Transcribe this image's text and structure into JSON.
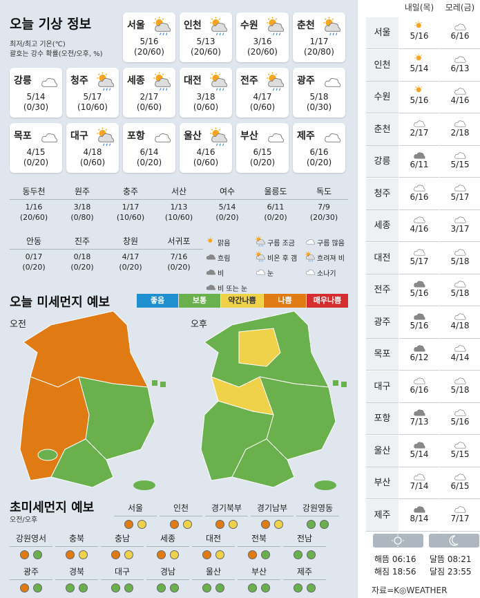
{
  "title": "오늘 기상 정보",
  "subtitle1": "최저/최고 기온(℃)",
  "subtitle2": "괄호는 강수 확률(오전/오후, %)",
  "cities": [
    {
      "name": "서울",
      "temp": "5/16",
      "rain": "(20/60)",
      "icon": "sun-cloud-rain-icon"
    },
    {
      "name": "인천",
      "temp": "5/13",
      "rain": "(20/60)",
      "icon": "sun-cloud-rain-icon"
    },
    {
      "name": "수원",
      "temp": "3/16",
      "rain": "(20/60)",
      "icon": "sun-cloud-rain-icon"
    },
    {
      "name": "춘천",
      "temp": "1/17",
      "rain": "(20/80)",
      "icon": "sun-cloud-rain-icon"
    },
    {
      "name": "강릉",
      "temp": "5/14",
      "rain": "(0/30)",
      "icon": "cloud-icon"
    },
    {
      "name": "청주",
      "temp": "5/17",
      "rain": "(10/60)",
      "icon": "sun-cloud-rain-icon"
    },
    {
      "name": "세종",
      "temp": "2/17",
      "rain": "(0/60)",
      "icon": "sun-cloud-rain-icon"
    },
    {
      "name": "대전",
      "temp": "3/18",
      "rain": "(0/60)",
      "icon": "sun-cloud-rain-icon"
    },
    {
      "name": "전주",
      "temp": "4/17",
      "rain": "(0/60)",
      "icon": "sun-cloud-rain-icon"
    },
    {
      "name": "광주",
      "temp": "5/18",
      "rain": "(0/30)",
      "icon": "cloud-icon"
    },
    {
      "name": "목포",
      "temp": "4/15",
      "rain": "(0/20)",
      "icon": "cloud-icon"
    },
    {
      "name": "대구",
      "temp": "4/18",
      "rain": "(0/60)",
      "icon": "sun-cloud-rain-icon"
    },
    {
      "name": "포항",
      "temp": "6/14",
      "rain": "(0/20)",
      "icon": "cloud-icon"
    },
    {
      "name": "울산",
      "temp": "4/16",
      "rain": "(0/60)",
      "icon": "sun-cloud-rain-icon"
    },
    {
      "name": "부산",
      "temp": "6/15",
      "rain": "(0/20)",
      "icon": "cloud-icon"
    },
    {
      "name": "제주",
      "temp": "6/16",
      "rain": "(0/20)",
      "icon": "cloud-icon"
    }
  ],
  "small_cities": [
    {
      "name": "동두천",
      "temp": "1/16",
      "rain": "(20/60)"
    },
    {
      "name": "원주",
      "temp": "3/18",
      "rain": "(0/80)"
    },
    {
      "name": "충주",
      "temp": "1/17",
      "rain": "(10/60)"
    },
    {
      "name": "서산",
      "temp": "1/13",
      "rain": "(10/60)"
    },
    {
      "name": "여수",
      "temp": "5/14",
      "rain": "(0/20)"
    },
    {
      "name": "울릉도",
      "temp": "6/11",
      "rain": "(0/20)"
    },
    {
      "name": "독도",
      "temp": "7/9",
      "rain": "(20/30)"
    },
    {
      "name": "안동",
      "temp": "0/17",
      "rain": "(0/20)"
    },
    {
      "name": "진주",
      "temp": "0/18",
      "rain": "(0/20)"
    },
    {
      "name": "창원",
      "temp": "4/17",
      "rain": "(0/20)"
    },
    {
      "name": "서귀포",
      "temp": "7/16",
      "rain": "(0/20)"
    }
  ],
  "legend": [
    "맑음",
    "구름 조금",
    "구름 많음",
    "흐림",
    "비온 후 갬",
    "흐려져 비",
    "비",
    "눈",
    "소나기",
    "비 또는 눈"
  ],
  "dust_title": "오늘 미세먼지 예보",
  "levels": [
    {
      "label": "좋음",
      "color": "#1f8fd0"
    },
    {
      "label": "보통",
      "color": "#6ab04c"
    },
    {
      "label": "약간나쁨",
      "color": "#f0d24a"
    },
    {
      "label": "나쁨",
      "color": "#e07b14"
    },
    {
      "label": "매우나쁨",
      "color": "#d62e2e"
    }
  ],
  "am_label": "오전",
  "pm_label": "오후",
  "fine_title": "초미세먼지 예보",
  "fine_sub": "오전/오후",
  "fine": [
    {
      "name": "서울",
      "am": "#e07b14",
      "pm": "#f0d24a"
    },
    {
      "name": "인천",
      "am": "#e07b14",
      "pm": "#f0d24a"
    },
    {
      "name": "경기북부",
      "am": "#e07b14",
      "pm": "#f0d24a"
    },
    {
      "name": "경기남부",
      "am": "#e07b14",
      "pm": "#f0d24a"
    },
    {
      "name": "강원영동",
      "am": "#6ab04c",
      "pm": "#6ab04c"
    },
    {
      "name": "강원영서",
      "am": "#e07b14",
      "pm": "#6ab04c"
    },
    {
      "name": "충북",
      "am": "#e07b14",
      "pm": "#f0d24a"
    },
    {
      "name": "충남",
      "am": "#e07b14",
      "pm": "#f0d24a"
    },
    {
      "name": "세종",
      "am": "#e07b14",
      "pm": "#f0d24a"
    },
    {
      "name": "대전",
      "am": "#e07b14",
      "pm": "#f0d24a"
    },
    {
      "name": "전북",
      "am": "#e07b14",
      "pm": "#6ab04c"
    },
    {
      "name": "전남",
      "am": "#6ab04c",
      "pm": "#6ab04c"
    },
    {
      "name": "광주",
      "am": "#e07b14",
      "pm": "#6ab04c"
    },
    {
      "name": "경북",
      "am": "#6ab04c",
      "pm": "#6ab04c"
    },
    {
      "name": "대구",
      "am": "#6ab04c",
      "pm": "#6ab04c"
    },
    {
      "name": "경남",
      "am": "#6ab04c",
      "pm": "#6ab04c"
    },
    {
      "name": "울산",
      "am": "#6ab04c",
      "pm": "#6ab04c"
    },
    {
      "name": "부산",
      "am": "#6ab04c",
      "pm": "#6ab04c"
    },
    {
      "name": "제주",
      "am": "#6ab04c",
      "pm": "#6ab04c"
    }
  ],
  "forecast_head": {
    "d1": "내일(목)",
    "d2": "모레(금)"
  },
  "forecast": [
    {
      "name": "서울",
      "d1": "5/16",
      "i1": "sun-icon",
      "d2": "6/16",
      "i2": "cloud-icon"
    },
    {
      "name": "인천",
      "d1": "5/14",
      "i1": "sun-icon",
      "d2": "6/13",
      "i2": "cloud-icon"
    },
    {
      "name": "수원",
      "d1": "5/16",
      "i1": "sun-icon",
      "d2": "4/16",
      "i2": "cloud-icon"
    },
    {
      "name": "춘천",
      "d1": "2/17",
      "i1": "cloud-icon",
      "d2": "2/18",
      "i2": "cloud-icon"
    },
    {
      "name": "강릉",
      "d1": "6/11",
      "i1": "dark-cloud-icon",
      "d2": "5/15",
      "i2": "cloud-icon"
    },
    {
      "name": "청주",
      "d1": "6/16",
      "i1": "cloud-icon",
      "d2": "5/17",
      "i2": "cloud-icon"
    },
    {
      "name": "세종",
      "d1": "4/16",
      "i1": "cloud-icon",
      "d2": "3/17",
      "i2": "cloud-icon"
    },
    {
      "name": "대전",
      "d1": "5/17",
      "i1": "cloud-icon",
      "d2": "5/18",
      "i2": "cloud-icon"
    },
    {
      "name": "전주",
      "d1": "5/16",
      "i1": "dark-cloud-icon",
      "d2": "5/18",
      "i2": "cloud-icon"
    },
    {
      "name": "광주",
      "d1": "5/16",
      "i1": "dark-cloud-icon",
      "d2": "4/18",
      "i2": "cloud-icon"
    },
    {
      "name": "목포",
      "d1": "6/12",
      "i1": "dark-cloud-icon",
      "d2": "4/14",
      "i2": "cloud-icon"
    },
    {
      "name": "대구",
      "d1": "6/16",
      "i1": "cloud-icon",
      "d2": "5/18",
      "i2": "cloud-icon"
    },
    {
      "name": "포항",
      "d1": "7/13",
      "i1": "dark-cloud-icon",
      "d2": "5/16",
      "i2": "cloud-icon"
    },
    {
      "name": "울산",
      "d1": "5/14",
      "i1": "dark-cloud-icon",
      "d2": "5/15",
      "i2": "cloud-icon"
    },
    {
      "name": "부산",
      "d1": "7/14",
      "i1": "cloud-icon",
      "d2": "6/15",
      "i2": "cloud-icon"
    },
    {
      "name": "제주",
      "d1": "8/14",
      "i1": "dark-cloud-icon",
      "d2": "7/17",
      "i2": "cloud-icon"
    }
  ],
  "sun": {
    "rise": "해뜸 06:16",
    "set": "해짐 18:56"
  },
  "moon": {
    "rise": "달뜸 08:21",
    "set": "달짐 23:55"
  },
  "source": "자료=K◎WEATHER"
}
